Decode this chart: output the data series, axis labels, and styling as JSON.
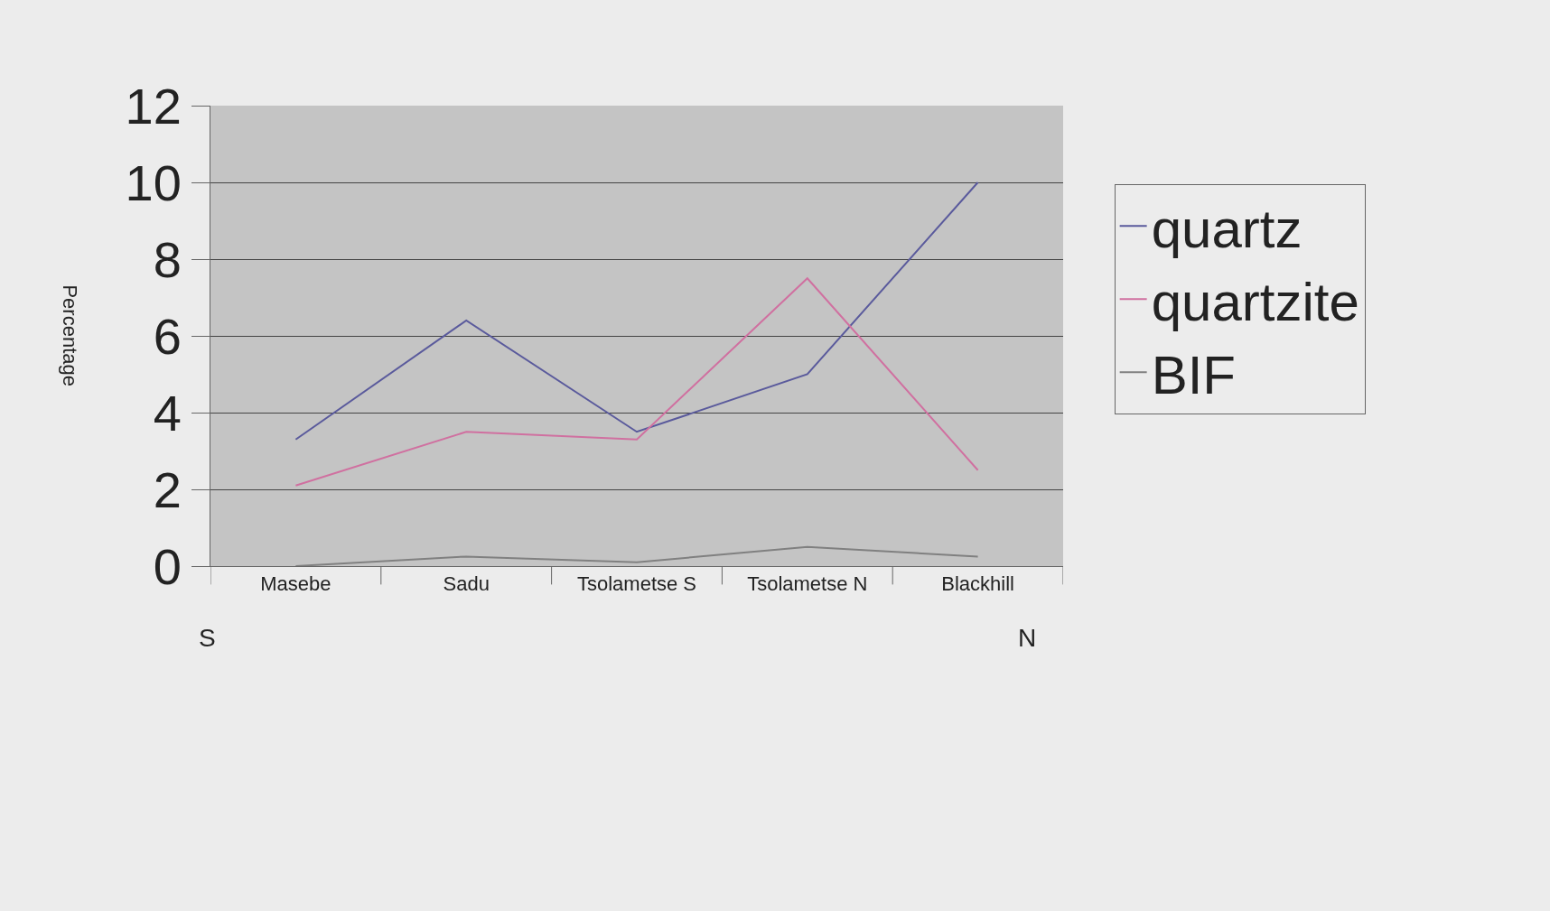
{
  "chart_data": {
    "type": "line",
    "ylabel": "Percentage",
    "categories": [
      "Masebe",
      "Sadu",
      "Tsolametse S",
      "Tsolametse N",
      "Blackhill"
    ],
    "series": [
      {
        "name": "quartz",
        "color": "#5a5a9c",
        "values": [
          3.3,
          6.4,
          3.5,
          5.0,
          10
        ]
      },
      {
        "name": "quartzite",
        "color": "#d070a0",
        "values": [
          2.1,
          3.5,
          3.3,
          7.5,
          2.5
        ]
      },
      {
        "name": "BIF",
        "color": "#808080",
        "values": [
          0,
          0.25,
          0.1,
          0.5,
          0.25
        ]
      }
    ],
    "ylim": [
      0,
      12
    ],
    "yticks": [
      0,
      2,
      4,
      6,
      8,
      10,
      12
    ],
    "grid": "y",
    "legend": "right",
    "marker": "none",
    "line_style": "solid",
    "annotations": [
      {
        "text": "S"
      },
      {
        "text": "N"
      }
    ]
  }
}
